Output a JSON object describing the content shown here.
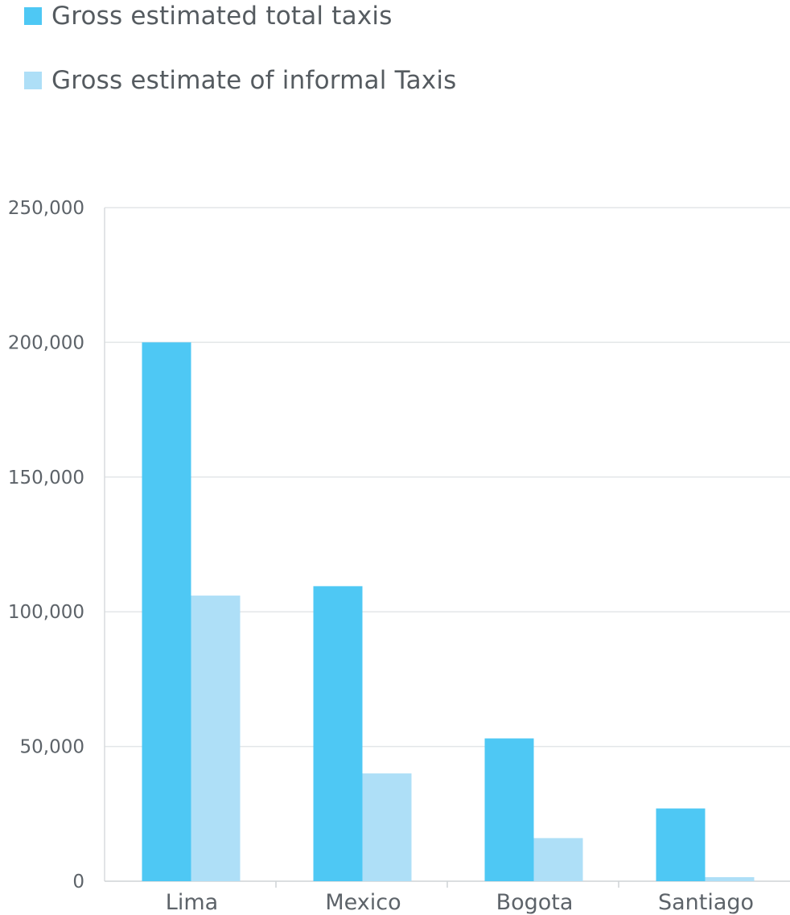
{
  "chart_data": {
    "type": "bar",
    "categories": [
      "Lima",
      "Mexico",
      "Bogota",
      "Santiago"
    ],
    "series": [
      {
        "name": "Gross estimated total taxis",
        "values": [
          200000,
          109500,
          53000,
          27000
        ],
        "color": "#4ec8f4"
      },
      {
        "name": "Gross estimate of informal Taxis",
        "values": [
          106000,
          40000,
          16000,
          1500
        ],
        "color": "#aedff7"
      }
    ],
    "yticks": [
      0,
      50000,
      100000,
      150000,
      200000,
      250000
    ],
    "ytick_labels": [
      "0",
      "50,000",
      "100,000",
      "150,000",
      "200,000",
      "250,000"
    ],
    "ylim": [
      0,
      250000
    ],
    "grid": true,
    "legend_position": "top-left",
    "title": "",
    "xlabel": "",
    "ylabel": ""
  }
}
